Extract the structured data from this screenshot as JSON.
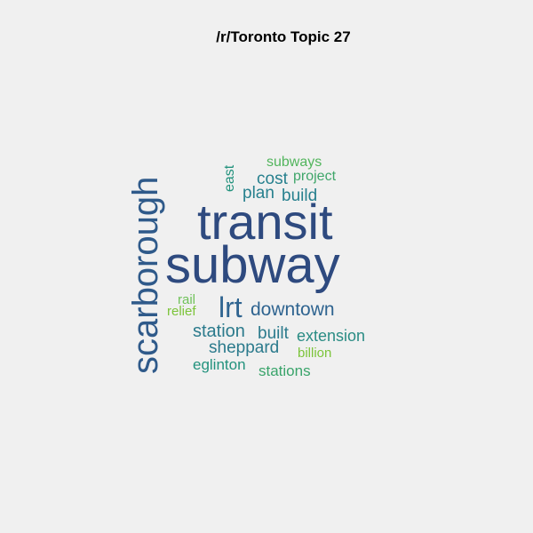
{
  "title": "/r/Toronto Topic 27",
  "words": {
    "subway": {
      "text": "subway",
      "color": "#2e4a7f"
    },
    "transit": {
      "text": "transit",
      "color": "#2e4a7f"
    },
    "scarborough": {
      "text": "scarborough",
      "color": "#2f5a8a"
    },
    "lrt": {
      "text": "lrt",
      "color": "#2f6490"
    },
    "downtown": {
      "text": "downtown",
      "color": "#2f6490"
    },
    "station": {
      "text": "station",
      "color": "#2b7a8c"
    },
    "built": {
      "text": "built",
      "color": "#2b7a8c"
    },
    "extension": {
      "text": "extension",
      "color": "#2a8c84"
    },
    "sheppard": {
      "text": "sheppard",
      "color": "#2b7a8c"
    },
    "eglinton": {
      "text": "eglinton",
      "color": "#23927d"
    },
    "stations": {
      "text": "stations",
      "color": "#3aa46b"
    },
    "billion": {
      "text": "billion",
      "color": "#7cc43a"
    },
    "rail": {
      "text": "rail",
      "color": "#70c25a"
    },
    "relief": {
      "text": "relief",
      "color": "#7cc43a"
    },
    "plan": {
      "text": "plan",
      "color": "#27808e"
    },
    "build": {
      "text": "build",
      "color": "#27808e"
    },
    "cost": {
      "text": "cost",
      "color": "#27808e"
    },
    "project": {
      "text": "project",
      "color": "#3fa66a"
    },
    "subways": {
      "text": "subways",
      "color": "#52b55d"
    },
    "east": {
      "text": "east",
      "color": "#23927d"
    }
  }
}
